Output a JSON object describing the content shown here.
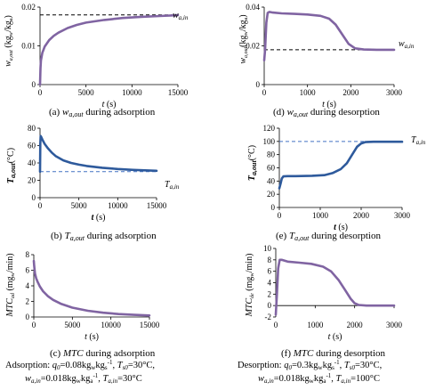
{
  "chart_data": [
    {
      "panel": "a",
      "type": "line",
      "caption": "(a) wₐ,out during adsorption",
      "caption_html": "(a) <tspan font-style='italic'>w<tspan font-size='7' dy='2'>a,out</tspan></tspan><tspan dy='-2'> during adsorption</tspan>",
      "ylabel": "w_a,out (kg_w/kg_a)",
      "xlabel": "t (s)",
      "xlim": [
        0,
        15000
      ],
      "ylim": [
        0,
        0.02
      ],
      "xticks": [
        0,
        5000,
        10000,
        15000
      ],
      "xticklabels": [
        "0",
        "5000",
        "10000",
        "15000"
      ],
      "yticks": [
        0,
        0.01,
        0.02
      ],
      "yticklabels": [
        "0",
        "0.01",
        "0.02"
      ],
      "series": [
        {
          "x": [
            0,
            50,
            100,
            250,
            500,
            1000,
            1500,
            2000,
            3000,
            4000,
            5000,
            7000,
            9000,
            11000,
            13000,
            15000
          ],
          "y": [
            0,
            0.0042,
            0.0062,
            0.0082,
            0.0098,
            0.0115,
            0.0126,
            0.0134,
            0.0146,
            0.0154,
            0.016,
            0.0167,
            0.0172,
            0.0175,
            0.0177,
            0.0179
          ]
        }
      ],
      "reference": {
        "y": 0.018,
        "label": "w_a,in",
        "style": "dashed",
        "color": "#000000"
      },
      "line_color": "#8064A2",
      "xlabel_bold": false
    },
    {
      "panel": "b",
      "type": "line",
      "caption": "(b) T_a,out during adsorption",
      "ylabel": "T_a,out (°C)",
      "xlabel": "t (s)",
      "xlim": [
        0,
        15000
      ],
      "ylim": [
        0,
        80
      ],
      "xticks": [
        0,
        5000,
        10000,
        15000
      ],
      "xticklabels": [
        "0",
        "5000",
        "10000",
        "15000"
      ],
      "yticks": [
        0,
        20,
        40,
        60,
        80
      ],
      "yticklabels": [
        "0",
        "20",
        "40",
        "60",
        "80"
      ],
      "series": [
        {
          "x": [
            0,
            30,
            80,
            150,
            300,
            600,
            1000,
            1500,
            2000,
            3000,
            4000,
            5000,
            6000,
            8000,
            10000,
            12000,
            15000
          ],
          "y": [
            30,
            62,
            71,
            70,
            67,
            62,
            57,
            52,
            48,
            43,
            40,
            38,
            36.5,
            34.5,
            33,
            32,
            31
          ]
        }
      ],
      "reference": {
        "y": 30,
        "label": "T_a,in",
        "style": "dashed",
        "color": "#4472C4"
      },
      "line_color": "#2E5A9C",
      "xlabel_bold": true
    },
    {
      "panel": "c",
      "type": "line",
      "caption": "(c) MTC during adsorption",
      "ylabel": "MTC_ad (mg_w/min)",
      "xlabel": "t (s)",
      "xlim": [
        0,
        15000
      ],
      "ylim": [
        0,
        8
      ],
      "xticks": [
        0,
        5000,
        10000,
        15000
      ],
      "xticklabels": [
        "0",
        "5000",
        "10000",
        "15000"
      ],
      "yticks": [
        0,
        2,
        4,
        6,
        8
      ],
      "yticklabels": [
        "0",
        "2",
        "4",
        "6",
        "8"
      ],
      "series": [
        {
          "x": [
            0,
            50,
            150,
            300,
            500,
            800,
            1200,
            1800,
            2500,
            3500,
            5000,
            7000,
            9000,
            11000,
            13000,
            15000
          ],
          "y": [
            7.2,
            6.6,
            5.6,
            5.0,
            4.5,
            3.9,
            3.3,
            2.7,
            2.2,
            1.7,
            1.2,
            0.8,
            0.55,
            0.38,
            0.27,
            0.2
          ]
        }
      ],
      "line_color": "#8064A2",
      "xlabel_bold": false
    },
    {
      "panel": "d",
      "type": "line",
      "caption": "(d) w_a,out during desorption",
      "ylabel": "w_a,out (kg_w/kg_a)",
      "xlabel": "t (s)",
      "xlim": [
        0,
        3000
      ],
      "ylim": [
        0,
        0.04
      ],
      "xticks": [
        0,
        1000,
        2000,
        3000
      ],
      "xticklabels": [
        "0",
        "1000",
        "2000",
        "3000"
      ],
      "yticks": [
        0,
        0.02,
        0.04
      ],
      "yticklabels": [
        "0",
        "0.02",
        "0.04"
      ],
      "series": [
        {
          "x": [
            0,
            20,
            50,
            80,
            120,
            200,
            400,
            700,
            1000,
            1300,
            1500,
            1650,
            1800,
            1950,
            2100,
            2300,
            2600,
            3000
          ],
          "y": [
            0.0125,
            0.018,
            0.032,
            0.037,
            0.0375,
            0.0372,
            0.0368,
            0.0365,
            0.0362,
            0.0355,
            0.034,
            0.031,
            0.026,
            0.021,
            0.0187,
            0.0181,
            0.018,
            0.018
          ]
        }
      ],
      "reference": {
        "y": 0.018,
        "label": "w_a,in",
        "style": "dashed",
        "color": "#000000"
      },
      "line_color": "#8064A2",
      "xlabel_bold": false
    },
    {
      "panel": "e",
      "type": "line",
      "caption": "(e) T_a,out during desorption",
      "ylabel": "T_a,out (°C)",
      "xlabel": "t (s)",
      "xlim": [
        0,
        3000
      ],
      "ylim": [
        0,
        120
      ],
      "xticks": [
        0,
        1000,
        2000,
        3000
      ],
      "xticklabels": [
        "0",
        "1000",
        "2000",
        "3000"
      ],
      "yticks": [
        0,
        20,
        40,
        60,
        80,
        100,
        120
      ],
      "yticklabels": [
        "0",
        "20",
        "40",
        "60",
        "80",
        "100",
        "120"
      ],
      "series": [
        {
          "x": [
            0,
            30,
            60,
            100,
            200,
            400,
            800,
            1100,
            1300,
            1500,
            1650,
            1800,
            1900,
            2000,
            2100,
            2300,
            2600,
            3000
          ],
          "y": [
            29,
            36,
            44,
            47,
            47.5,
            47.5,
            48,
            49,
            52,
            58,
            67,
            82,
            92,
            97,
            99,
            99.5,
            99.5,
            99.5
          ]
        }
      ],
      "reference": {
        "y": 100,
        "label": "T_a,in",
        "style": "dashed",
        "color": "#4472C4"
      },
      "line_color": "#2E5A9C",
      "xlabel_bold": true
    },
    {
      "panel": "f",
      "type": "line",
      "caption": "(f) MTC during desorption",
      "ylabel": "MTC_de (mg_w/min)",
      "xlabel": "t (s)",
      "xlim": [
        0,
        3000
      ],
      "ylim": [
        -2,
        10
      ],
      "xticks": [
        0,
        1000,
        2000,
        3000
      ],
      "xticklabels": [
        "0",
        "1000",
        "2000",
        "3000"
      ],
      "yticks": [
        -2,
        0,
        2,
        4,
        6,
        8,
        10
      ],
      "yticklabels": [
        "-2",
        "0",
        "2",
        "4",
        "6",
        "8",
        "10"
      ],
      "series": [
        {
          "x": [
            0,
            30,
            60,
            100,
            150,
            300,
            600,
            900,
            1200,
            1400,
            1600,
            1750,
            1900,
            2000,
            2100,
            2300,
            2600,
            3000
          ],
          "y": [
            -1.6,
            2.0,
            6.5,
            8.0,
            8.0,
            7.7,
            7.5,
            7.3,
            6.8,
            6.0,
            4.4,
            2.8,
            1.2,
            0.4,
            0.1,
            0.0,
            0.0,
            0.0
          ]
        }
      ],
      "line_color": "#8064A2",
      "xlabel_bold": false
    }
  ],
  "notes": {
    "adsorption": {
      "line1": "Adsorption: q0=0.08kgwkgs-1, Ts0=30°C,",
      "line2": "wa,in=0.018kgwkga-1, Ta,in=30°C"
    },
    "desorption": {
      "line1": "Desorption: q0=0.3kgwkgs-1, Ts0=30°C,",
      "line2": "wa,in=0.018kgwkga-1, Ta,in=100°C"
    }
  }
}
